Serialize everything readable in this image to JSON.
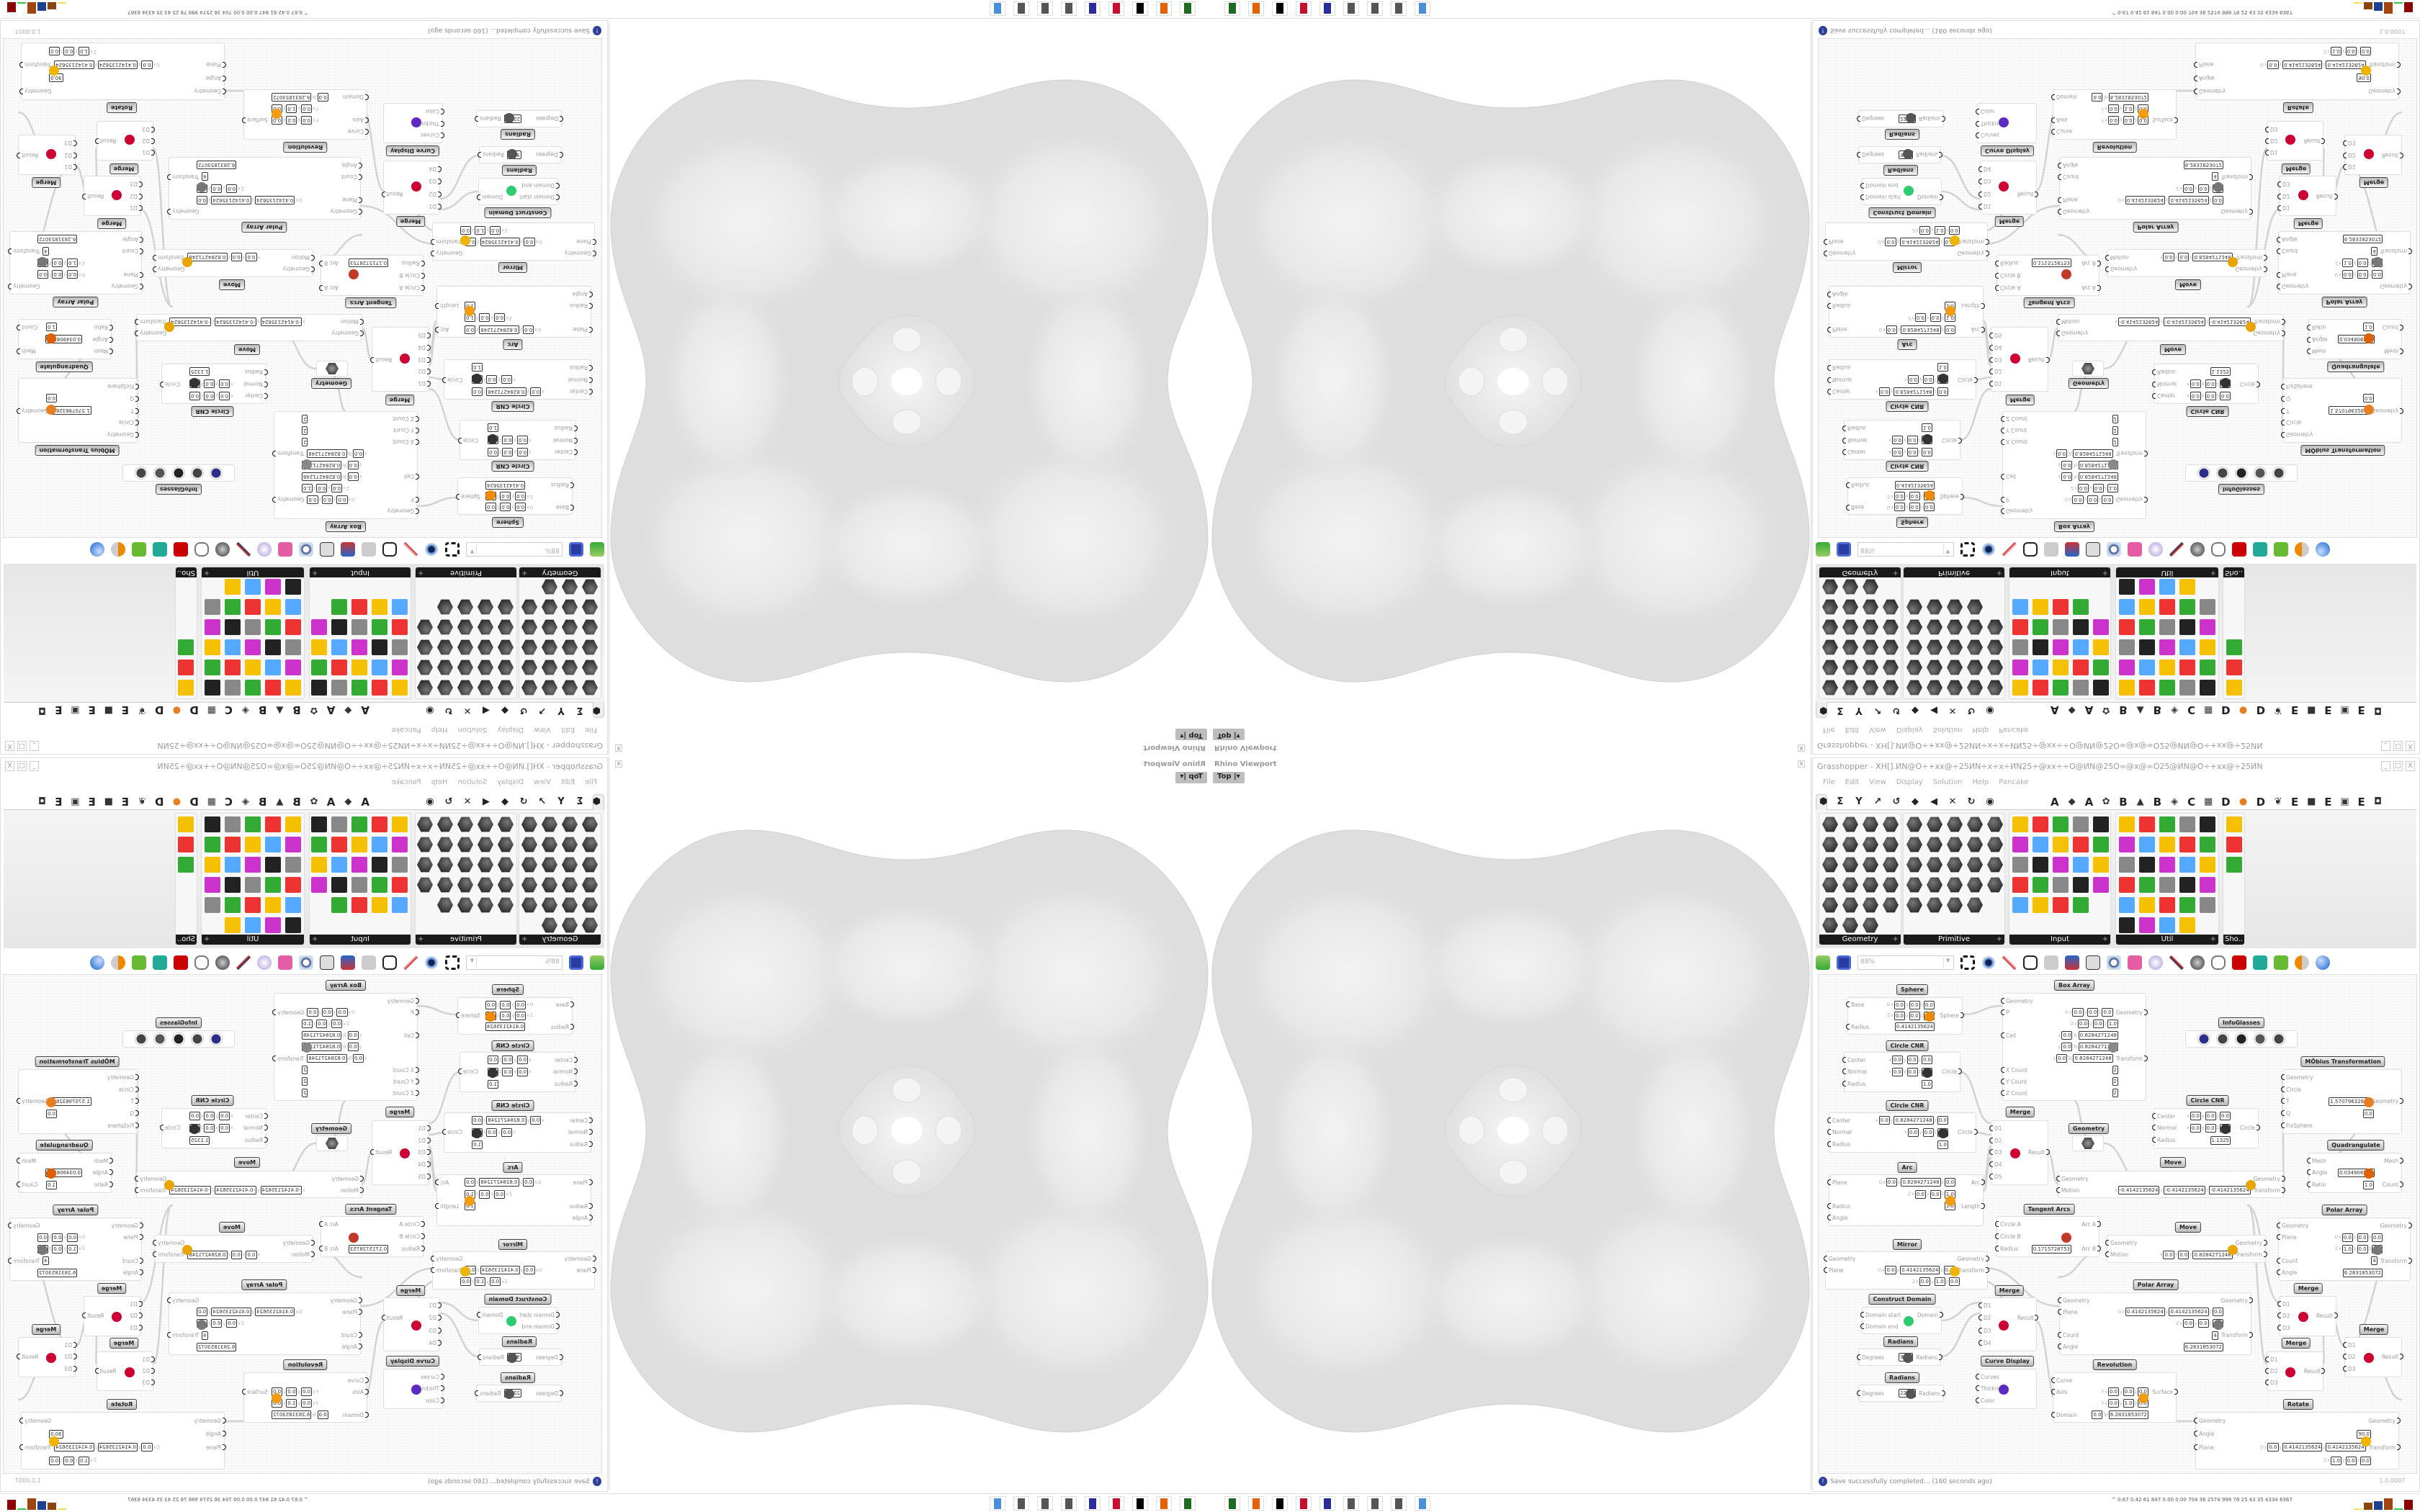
{
  "viewport": {
    "title": "Rhino Viewport",
    "view_label": "Top",
    "close": "x"
  },
  "grasshopper": {
    "title": "Grasshopper - XH[].ИN@O÷+xx@÷25ИN÷x÷x÷ИN25÷@xx÷÷O@ИN@25O∞@x@∞O25@ИN@O÷+xx@÷25ИN÷x÷x÷ИN25÷@xx÷÷O@ИN",
    "window_buttons": [
      "_",
      "□",
      "X"
    ],
    "menu": [
      "File",
      "Edit",
      "View",
      "Display",
      "Solution",
      "Help",
      "Pancake"
    ],
    "tab_icons": [
      "params-hex-icon",
      "maths-sigma-icon",
      "sets-y-icon",
      "vector-arrow-icon",
      "curve-icon",
      "surface-icon",
      "mesh-icon",
      "intersect-icon",
      "transform-icon",
      "display-eye-icon"
    ],
    "tab_letters": [
      "A",
      "A",
      "B",
      "B",
      "C",
      "D",
      "D",
      "E",
      "E",
      "E"
    ],
    "panels": [
      {
        "label": "Geometry",
        "icon_count": 23
      },
      {
        "label": "Primitive",
        "icon_count": 24
      },
      {
        "label": "Input",
        "icon_count": 24
      },
      {
        "label": "Util",
        "icon_count": 29
      },
      {
        "label": "Sho..",
        "icon_count": 3
      }
    ],
    "zoom": "88%",
    "status": "Save successfully completed... (160 seconds ago)",
    "version": "1.0.0007",
    "nodes": [
      {
        "title": "Sphere",
        "icon": "sphere-icon",
        "color": "#f08a00",
        "rows": [
          {
            "in": "Base",
            "vals": [
              "O",
              "x",
              "0.0",
              "y",
              "0.0",
              "z",
              "0.0"
            ]
          },
          {
            "vals": [
              "Z",
              "x",
              "0.0",
              "y",
              "0.0",
              "z",
              "1.0"
            ],
            "out": "Sphere"
          },
          {
            "in": "Radius",
            "vals": [
              "0.4142135624"
            ]
          }
        ]
      },
      {
        "title": "Circle CNR",
        "icon": "circle-cnr-icon",
        "color": "#333",
        "rows": [
          {
            "in": "Center",
            "vals": [
              "x",
              "0.0",
              "y",
              "0.0",
              "z",
              "0.0"
            ]
          },
          {
            "in": "Normal",
            "vals": [
              "x",
              "0.0",
              "y",
              "0.0",
              "z",
              "1.0"
            ],
            "out": "Circle"
          },
          {
            "in": "Radius",
            "vals": [
              "1.0"
            ]
          }
        ]
      },
      {
        "title": "Circle CNR",
        "icon": "circle-cnr-icon",
        "color": "#333",
        "rows": [
          {
            "in": "Center",
            "vals": [
              "x",
              "0.0",
              "y",
              "0.8284271248",
              "z",
              "0.0"
            ]
          },
          {
            "in": "Normal",
            "vals": [
              "x",
              "0.0",
              "y",
              "0.0",
              "z",
              "1.0"
            ],
            "out": "Circle"
          },
          {
            "in": "Radius",
            "vals": [
              "1.0"
            ]
          }
        ]
      },
      {
        "title": "Arc",
        "icon": "arc-icon",
        "color": "#f39c12",
        "rows": [
          {
            "in": "Plane",
            "vals": [
              "O",
              "x",
              "0.0",
              "y",
              "0.8284271248",
              "z",
              "0.0"
            ],
            "out": "Arc"
          },
          {
            "vals": [
              "Z",
              "x",
              "0.0",
              "y",
              "0.0",
              "z",
              "1.0"
            ]
          },
          {
            "in": "Radius",
            "vals": [
              "1.0"
            ],
            "out": "Length"
          },
          {
            "in": "Angle"
          }
        ]
      },
      {
        "title": "Box Array",
        "icon": "box-array-icon",
        "color": "#888",
        "rows": [
          {
            "in": "Geometry"
          },
          {
            "in": "P",
            "vals": [
              "O",
              "x",
              "0.0",
              "y",
              "0.0",
              "z",
              "0.0"
            ],
            "out": "Geometry"
          },
          {
            "vals": [
              "Z",
              "x",
              "0.0",
              "y",
              "0.0",
              "z",
              "1.0"
            ]
          },
          {
            "in": "Cell",
            "vals": [
              "x",
              "0.0",
              "To",
              "0.8284271248"
            ]
          },
          {
            "vals": [
              "y",
              "0.0",
              "To",
              "0.8284271248"
            ]
          },
          {
            "vals": [
              "z",
              "0.0",
              "To",
              "0.8284271248"
            ],
            "out": "Transform"
          },
          {
            "in": "X Count",
            "vals": [
              "2"
            ]
          },
          {
            "in": "Y Count",
            "vals": [
              "2"
            ]
          },
          {
            "in": "Z Count",
            "vals": [
              "2"
            ]
          }
        ]
      },
      {
        "title": "Merge",
        "icon": "merge-icon",
        "color": "#c03",
        "rows": [
          {
            "in": "D1"
          },
          {
            "in": "D2"
          },
          {
            "in": "D3",
            "out": "Result"
          },
          {
            "in": "D4"
          },
          {
            "in": "D5"
          }
        ]
      },
      {
        "title": "Geometry",
        "icon": "geometry-param-icon",
        "color": "#444",
        "rows": [
          {
            "in": "",
            "out": ""
          }
        ]
      },
      {
        "title": "Move",
        "icon": "move-icon",
        "color": "#e8a400",
        "rows": [
          {
            "in": "Geometry",
            "out": "Geometry"
          },
          {
            "in": "Motion",
            "vals": [
              "x",
              "-0.4142135624",
              "y",
              "-0.4142135624",
              "z",
              "-0.4142135624"
            ],
            "out": "Transform"
          }
        ]
      },
      {
        "title": "Tangent Arcs",
        "icon": "tangent-arcs-icon",
        "color": "#c0392b",
        "rows": [
          {
            "in": "Circle A",
            "out": "Arc A"
          },
          {
            "in": "Circle B"
          },
          {
            "in": "Radius",
            "vals": [
              "0.1715728753"
            ],
            "out": "Arc B"
          }
        ]
      },
      {
        "title": "InfoGlasses",
        "icon": "infoglasses-icon",
        "color": "#2d2d8a",
        "rows": []
      },
      {
        "title": "MÖbius Transformation",
        "icon": "mobius-icon",
        "color": "#e67e22",
        "rows": [
          {
            "in": "Geometry"
          },
          {
            "in": "Circle"
          },
          {
            "in": "T",
            "vals": [
              "1.5707963268"
            ],
            "out": "Geometry"
          },
          {
            "in": "Q",
            "vals": [
              "0.0"
            ]
          },
          {
            "in": "FixSphere"
          }
        ]
      },
      {
        "title": "Circle CNR",
        "icon": "circle-cnr-icon",
        "color": "#333",
        "rows": [
          {
            "in": "Center",
            "vals": [
              "x",
              "0.0",
              "y",
              "0.0",
              "z",
              "0.0"
            ]
          },
          {
            "in": "Normal",
            "vals": [
              "x",
              "0.0",
              "y",
              "0.0",
              "z",
              "1.0"
            ],
            "out": "Circle"
          },
          {
            "in": "Radius",
            "vals": [
              "1.1325"
            ]
          }
        ]
      },
      {
        "title": "Quadrangulate",
        "icon": "quadrangulate-icon",
        "color": "#e06000",
        "rows": [
          {
            "in": "Mesh",
            "out": "Mesh"
          },
          {
            "in": "Angle",
            "vals": [
              "0.034906585"
            ]
          },
          {
            "in": "Ratio",
            "vals": [
              "1.0"
            ],
            "out": "Count"
          }
        ]
      },
      {
        "title": "Polar Array",
        "icon": "polar-array-icon",
        "color": "#777",
        "rows": [
          {
            "in": "Geometry",
            "out": "Geometry"
          },
          {
            "in": "Plane",
            "vals": [
              "O",
              "x",
              "0.0",
              "y",
              "0.0",
              "z",
              "0.0"
            ]
          },
          {
            "vals": [
              "Z",
              "x",
              "1.0",
              "y",
              "0.0",
              "z",
              "0.0"
            ]
          },
          {
            "in": "Count",
            "vals": [
              "4"
            ],
            "out": "Transform"
          },
          {
            "in": "Angle",
            "vals": [
              "6.2831853072"
            ]
          }
        ]
      },
      {
        "title": "Mirror",
        "icon": "mirror-icon",
        "color": "#f0b400",
        "rows": [
          {
            "in": "Geometry",
            "out": "Geometry"
          },
          {
            "in": "Plane",
            "vals": [
              "O",
              "x",
              "0.0",
              "y",
              "0.4142135624",
              "z",
              "0.0"
            ],
            "out": "Transform"
          },
          {
            "vals": [
              "Z",
              "x",
              "0.0",
              "y",
              "1.0",
              "z",
              "0.0"
            ]
          }
        ]
      },
      {
        "title": "Construct Domain",
        "icon": "domain-icon",
        "color": "#2ecc71",
        "rows": [
          {
            "in": "Domain start",
            "out": "Domain"
          },
          {
            "in": "Domain end"
          }
        ]
      },
      {
        "title": "Radians",
        "icon": "radians-icon",
        "color": "#555",
        "rows": [
          {
            "in": "Degrees",
            "vals": [
              "90.0"
            ],
            "out": "Radians"
          }
        ]
      },
      {
        "title": "Radians",
        "icon": "radians-icon",
        "color": "#555",
        "rows": [
          {
            "in": "Degrees",
            "vals": [
              "225.0"
            ],
            "out": "Radians"
          }
        ]
      },
      {
        "title": "Merge",
        "icon": "merge-icon",
        "color": "#c03",
        "rows": [
          {
            "in": "D1"
          },
          {
            "in": "D2",
            "out": "Result"
          },
          {
            "in": "D3"
          },
          {
            "in": "D4"
          }
        ]
      },
      {
        "title": "Curve Display",
        "icon": "curve-display-icon",
        "color": "#5b2bc4",
        "rows": [
          {
            "in": "Curves"
          },
          {
            "in": "Thickness"
          },
          {
            "in": "Color"
          }
        ]
      },
      {
        "title": "Polar Array",
        "icon": "polar-array-icon",
        "color": "#777",
        "rows": [
          {
            "in": "Geometry",
            "out": "Geometry"
          },
          {
            "in": "Plane",
            "vals": [
              "O",
              "x",
              "0.4142135624",
              "y",
              "0.4142135624",
              "z",
              "0.0"
            ]
          },
          {
            "vals": [
              "Z",
              "x",
              "0.0",
              "y",
              "0.0",
              "z",
              "1.0"
            ]
          },
          {
            "in": "Count",
            "vals": [
              "4"
            ],
            "out": "Transform"
          },
          {
            "in": "Angle",
            "vals": [
              "6.2831853072"
            ]
          }
        ]
      },
      {
        "title": "Revolution",
        "icon": "revolution-icon",
        "color": "#f39c12",
        "rows": [
          {
            "in": "Curve"
          },
          {
            "in": "Axis",
            "vals": [
              "F",
              "x",
              "0.0",
              "y",
              "0.0",
              "z",
              "0.0"
            ],
            "out": "Surface"
          },
          {
            "vals": [
              "T",
              "x",
              "0.0",
              "y",
              "1.0",
              "z",
              "0.0"
            ]
          },
          {
            "in": "Domain",
            "vals": [
              "0.0",
              "To",
              "6.2831853072"
            ]
          }
        ]
      },
      {
        "title": "Move",
        "icon": "move-icon",
        "color": "#e8a400",
        "rows": [
          {
            "in": "Geometry",
            "out": "Geometry"
          },
          {
            "in": "Motion",
            "vals": [
              "x",
              "0.0",
              "y",
              "0.0",
              "z",
              "0.8284271248"
            ],
            "out": "Transform"
          }
        ]
      },
      {
        "title": "Merge",
        "icon": "merge-icon",
        "color": "#c03",
        "rows": [
          {
            "in": "D1"
          },
          {
            "in": "D2",
            "out": "Result"
          },
          {
            "in": "D3"
          }
        ]
      },
      {
        "title": "Merge",
        "icon": "merge-icon",
        "color": "#c03",
        "rows": [
          {
            "in": "D1"
          },
          {
            "in": "D2",
            "out": "Result"
          },
          {
            "in": "D3"
          }
        ]
      },
      {
        "title": "Merge",
        "icon": "merge-icon",
        "color": "#c03",
        "rows": [
          {
            "in": "D1"
          },
          {
            "in": "D2",
            "out": "Result"
          },
          {
            "in": "D3"
          }
        ]
      },
      {
        "title": "Rotate",
        "icon": "rotate-icon",
        "color": "#f0b400",
        "rows": [
          {
            "in": "Geometry",
            "out": "Geometry"
          },
          {
            "in": "Angle",
            "vals": [
              "90.0"
            ]
          },
          {
            "in": "Plane",
            "vals": [
              "O",
              "x",
              "0.0",
              "y",
              "0.4142135624",
              "z",
              "0.4142135624"
            ],
            "out": "Transform"
          },
          {
            "vals": [
              "Z",
              "x",
              "1.0",
              "y",
              "0.0",
              "z",
              "0.0"
            ]
          }
        ]
      }
    ]
  },
  "taskbar": {
    "icons": [
      {
        "name": "device-app-icon",
        "color": "#1f6b1f"
      },
      {
        "name": "firefox-icon",
        "color": "#e66000"
      },
      {
        "name": "inkscape-icon",
        "color": "#000000"
      },
      {
        "name": "red-app-icon",
        "color": "#c8102e"
      },
      {
        "name": "floppy-save-icon",
        "color": "#2b2b9a"
      },
      {
        "name": "maze-icon",
        "color": "#555555"
      },
      {
        "name": "maze-icon",
        "color": "#555555"
      },
      {
        "name": "maze-icon",
        "color": "#555555"
      },
      {
        "name": "calculator-icon",
        "color": "#4a90d9"
      }
    ],
    "tray_stats": [
      "0.67",
      "0.42",
      "61",
      "847",
      "0.00",
      "0.00",
      "704",
      "36",
      "2574",
      "998",
      "78",
      "25",
      "43",
      "35",
      "4334",
      "6367"
    ],
    "tray_colors": [
      "#f0e060",
      "#8b4513",
      "#1f3f8f",
      "#a0450f",
      "#2ecc40",
      "#8b0000"
    ]
  }
}
